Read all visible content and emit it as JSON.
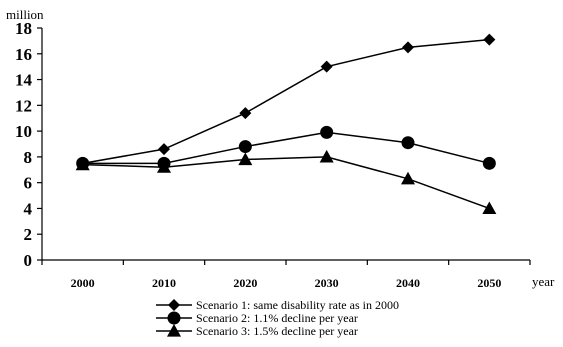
{
  "chart_data": {
    "type": "line",
    "title": "",
    "ylabel": "million",
    "xlabel": "year",
    "x": [
      2000,
      2010,
      2020,
      2030,
      2040,
      2050
    ],
    "ylim": [
      0,
      18
    ],
    "yticks": [
      0,
      2,
      4,
      6,
      8,
      10,
      12,
      14,
      16,
      18
    ],
    "grid": false,
    "legend_position": "bottom",
    "series": [
      {
        "name": "Scenario 1: same disability rate as in 2000",
        "marker": "diamond",
        "values": [
          7.5,
          8.6,
          11.4,
          15.0,
          16.5,
          17.1
        ]
      },
      {
        "name": "Scenario 2: 1.1% decline per year",
        "marker": "circle",
        "values": [
          7.5,
          7.5,
          8.8,
          9.9,
          9.1,
          7.5
        ]
      },
      {
        "name": "Scenario 3: 1.5% decline per year",
        "marker": "triangle",
        "values": [
          7.4,
          7.2,
          7.8,
          8.0,
          6.3,
          4.0
        ]
      }
    ]
  }
}
